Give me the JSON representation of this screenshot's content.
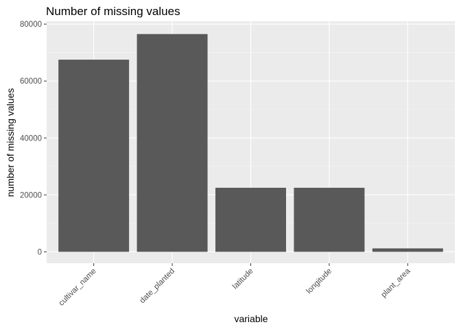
{
  "chart_data": {
    "type": "bar",
    "title": "Number of missing values",
    "xlabel": "variable",
    "ylabel": "number of missing values",
    "categories": [
      "cultivar_name",
      "date_planted",
      "latitude",
      "longitude",
      "plant_area"
    ],
    "values": [
      67500,
      76500,
      22500,
      22500,
      1200
    ],
    "ylim": [
      -4000,
      81000
    ],
    "yticks": [
      0,
      20000,
      40000,
      60000,
      80000
    ],
    "ytick_labels": [
      "0",
      "20000",
      "40000",
      "60000",
      "80000"
    ],
    "grid": true,
    "legend": "none",
    "colors": {
      "panel_background": "#ebebeb",
      "grid_major": "#ffffff",
      "grid_minor": "#f5f5f5",
      "bar_fill": "#595959",
      "tick": "#333333"
    }
  }
}
